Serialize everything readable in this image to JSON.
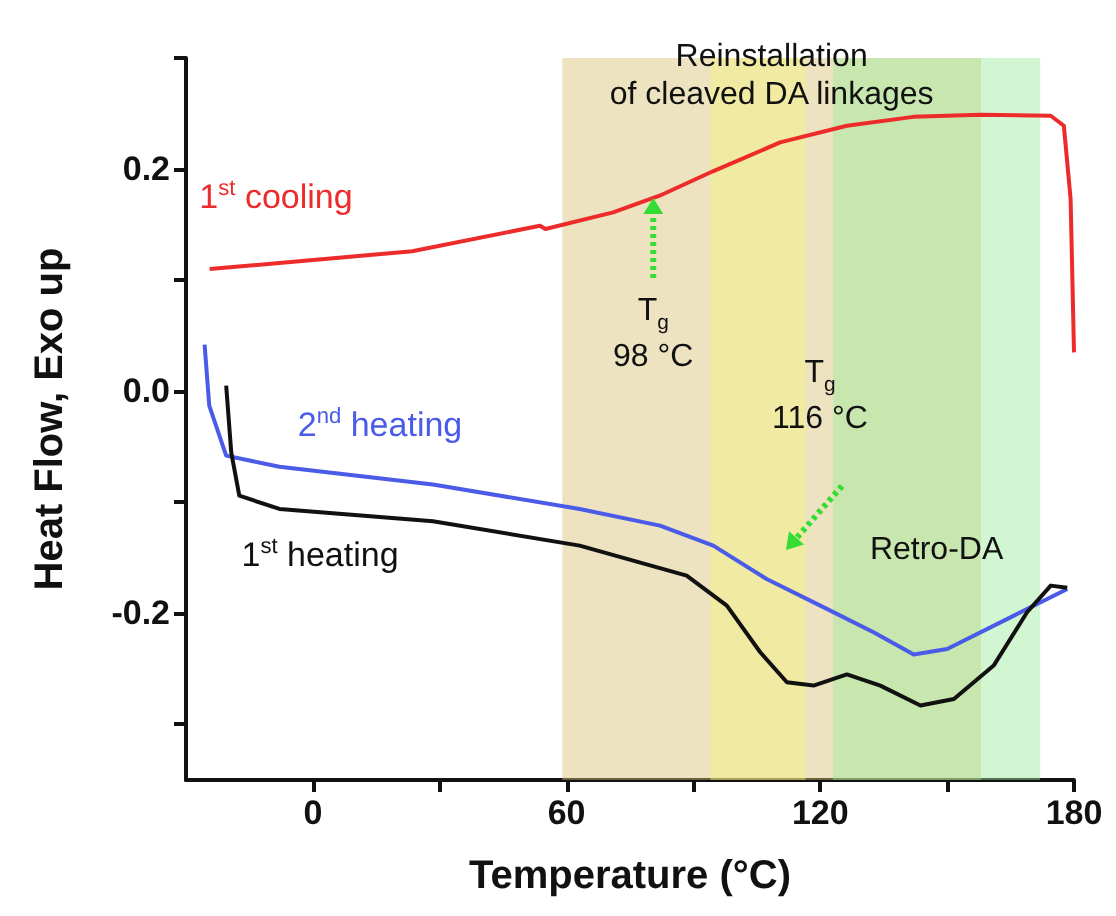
{
  "chart_data": {
    "type": "line",
    "xlabel": "Temperature (°C)",
    "ylabel": "Heat Flow, Exo up",
    "xlim": [
      -30,
      180
    ],
    "xticks": [
      0,
      {
        "value": 30,
        "label": null
      },
      60,
      {
        "value": 90,
        "label": null
      },
      120,
      {
        "value": 150,
        "label": null
      },
      180
    ],
    "ylim": [
      -0.35,
      0.3
    ],
    "yticks": [
      {
        "value": -0.3,
        "label": null
      },
      -0.2,
      {
        "value": -0.1,
        "label": null
      },
      {
        "value": 0,
        "label": "0.0"
      },
      {
        "value": 0.1,
        "label": null
      },
      0.2,
      {
        "value": 0.3,
        "label": null
      }
    ],
    "grid": false,
    "marker": "none",
    "line_style": "solid",
    "series": [
      {
        "name": "1$^{st}$ cooling",
        "color": "#ee2b2b",
        "x": [
          -24.4,
          23.5,
          53.7,
          55,
          71,
          82,
          94.6,
          110.5,
          126.3,
          142,
          157.9,
          174.5,
          177.6,
          179.2,
          180
        ],
        "values": [
          0.11,
          0.126,
          0.149,
          0.146,
          0.161,
          0.176,
          0.198,
          0.224,
          0.239,
          0.247,
          0.249,
          0.248,
          0.239,
          0.173,
          0.035
        ]
      },
      {
        "name": "2$^{nd}$ heating",
        "color": "#4a5be8",
        "x": [
          -25.6,
          -24.5,
          -20.5,
          -7.9,
          28.4,
          63.1,
          82.1,
          94.7,
          107.3,
          120,
          132.6,
          142.1,
          150,
          165.8,
          178.4
        ],
        "values": [
          0.042,
          -0.013,
          -0.058,
          -0.068,
          -0.084,
          -0.106,
          -0.121,
          -0.139,
          -0.169,
          -0.193,
          -0.217,
          -0.237,
          -0.232,
          -0.202,
          -0.178
        ]
      },
      {
        "name": "1$^{st}$ heating",
        "color": "#111111",
        "x": [
          -20.5,
          -19.3,
          -17.4,
          -7.9,
          28.4,
          63.1,
          88.4,
          97.9,
          105.8,
          112.1,
          118.4,
          126.3,
          134.2,
          143.7,
          151.6,
          161,
          168.9,
          174.5,
          178.4
        ],
        "values": [
          0.005,
          -0.055,
          -0.094,
          -0.106,
          -0.117,
          -0.139,
          -0.166,
          -0.193,
          -0.235,
          -0.262,
          -0.265,
          -0.255,
          -0.265,
          -0.283,
          -0.277,
          -0.247,
          -0.199,
          -0.175,
          -0.177
        ]
      }
    ],
    "bands": [
      {
        "axis": "x",
        "from": 59,
        "to": 158,
        "label": "Reinstallation\nof cleaved DA linkages",
        "color": "#d6c275"
      },
      {
        "axis": "x",
        "from": 94,
        "to": 116.5,
        "color": "#f7f27c"
      },
      {
        "axis": "x",
        "from": 123,
        "to": 172,
        "label": "Retro-DA",
        "color": "#98ec98"
      }
    ],
    "annotations": [
      {
        "text": "T$_{g}$\n98 °C",
        "x": 80.5,
        "y": 0.174
      },
      "T$_{g}$\n116 °C"
    ]
  }
}
